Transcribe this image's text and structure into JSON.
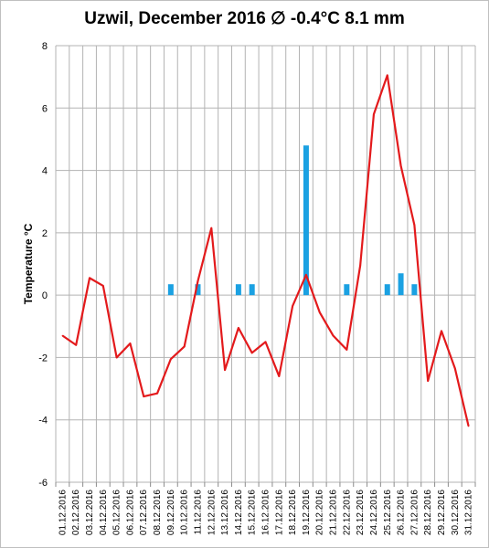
{
  "chart_data": {
    "type": "line",
    "title": "Uzwil, December 2016 ∅ -0.4°C 8.1 mm",
    "xlabel": "",
    "ylabel": "Temperature °C",
    "ylim": [
      -6,
      8
    ],
    "yticks": [
      -6,
      -4,
      -2,
      0,
      2,
      4,
      6,
      8
    ],
    "grid": true,
    "legend": "none",
    "categories": [
      "01.12.2016",
      "02.12.2016",
      "03.12.2016",
      "04.12.2016",
      "05.12.2016",
      "06.12.2016",
      "07.12.2016",
      "08.12.2016",
      "09.12.2016",
      "10.12.2016",
      "11.12.2016",
      "12.12.2016",
      "13.12.2016",
      "14.12.2016",
      "15.12.2016",
      "16.12.2016",
      "17.12.2016",
      "18.12.2016",
      "19.12.2016",
      "20.12.2016",
      "21.12.2016",
      "22.12.2016",
      "23.12.2016",
      "24.12.2016",
      "25.12.2016",
      "26.12.2016",
      "27.12.2016",
      "28.12.2016",
      "29.12.2016",
      "30.12.2016",
      "31.12.2016"
    ],
    "series": [
      {
        "type": "line",
        "color": "#e31a1c",
        "values": [
          -1.3,
          -1.6,
          0.55,
          0.3,
          -2.0,
          -1.55,
          -3.25,
          -3.15,
          -2.05,
          -1.65,
          0.45,
          2.15,
          -2.4,
          -1.05,
          -1.85,
          -1.5,
          -2.6,
          -0.35,
          0.65,
          -0.55,
          -1.3,
          -1.75,
          0.95,
          5.8,
          7.05,
          4.15,
          2.25,
          -2.75,
          -1.15,
          -2.35,
          -4.2
        ]
      },
      {
        "type": "bar",
        "color": "#1ba1e2",
        "values": [
          0,
          0,
          0,
          0,
          0,
          0,
          0,
          0,
          0.35,
          0,
          0.35,
          0,
          0,
          0.35,
          0.35,
          0,
          0,
          0,
          4.8,
          0,
          0,
          0.35,
          0,
          0,
          0.35,
          0.7,
          0.35,
          0,
          0,
          0,
          0
        ]
      }
    ]
  }
}
